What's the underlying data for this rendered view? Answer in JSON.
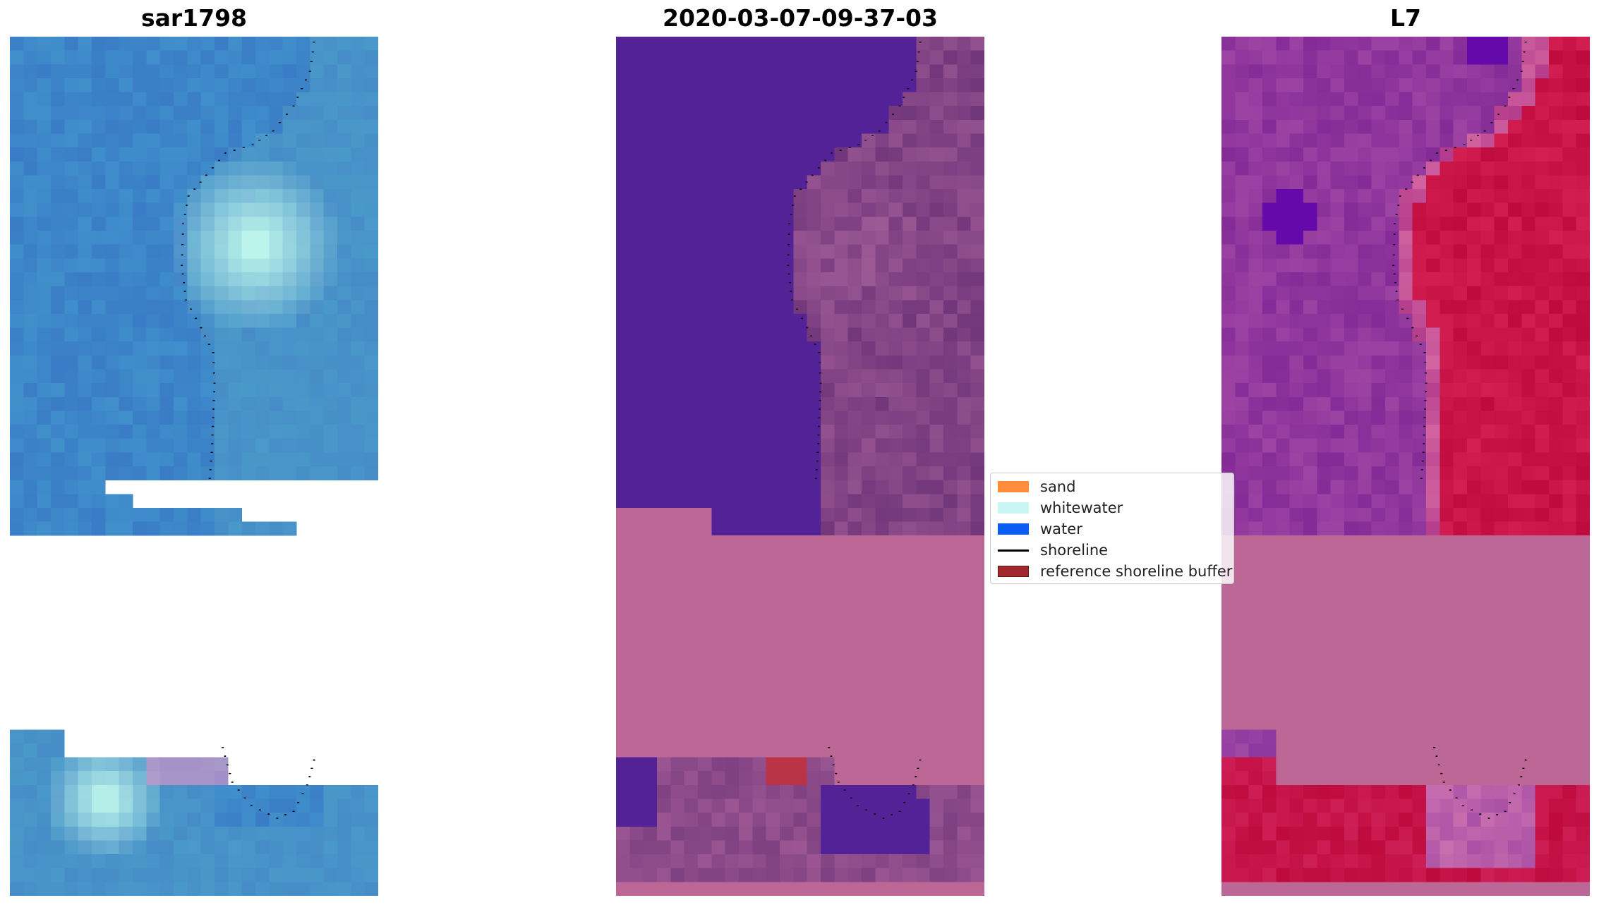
{
  "panels": [
    {
      "title": "sar1798",
      "style": "rgb"
    },
    {
      "title": "2020-03-07-09-37-03",
      "style": "classified"
    },
    {
      "title": "L7",
      "style": "index"
    }
  ],
  "legend": {
    "items": [
      {
        "label": "sand",
        "color": "#ff8c3a",
        "kind": "patch"
      },
      {
        "label": "whitewater",
        "color": "#c8f5f5",
        "kind": "patch"
      },
      {
        "label": "water",
        "color": "#0a5df0",
        "kind": "patch"
      },
      {
        "label": "shoreline",
        "color": "#000000",
        "kind": "line"
      },
      {
        "label": "reference shoreline buffer",
        "color": "#a0282e",
        "kind": "patch"
      }
    ]
  }
}
